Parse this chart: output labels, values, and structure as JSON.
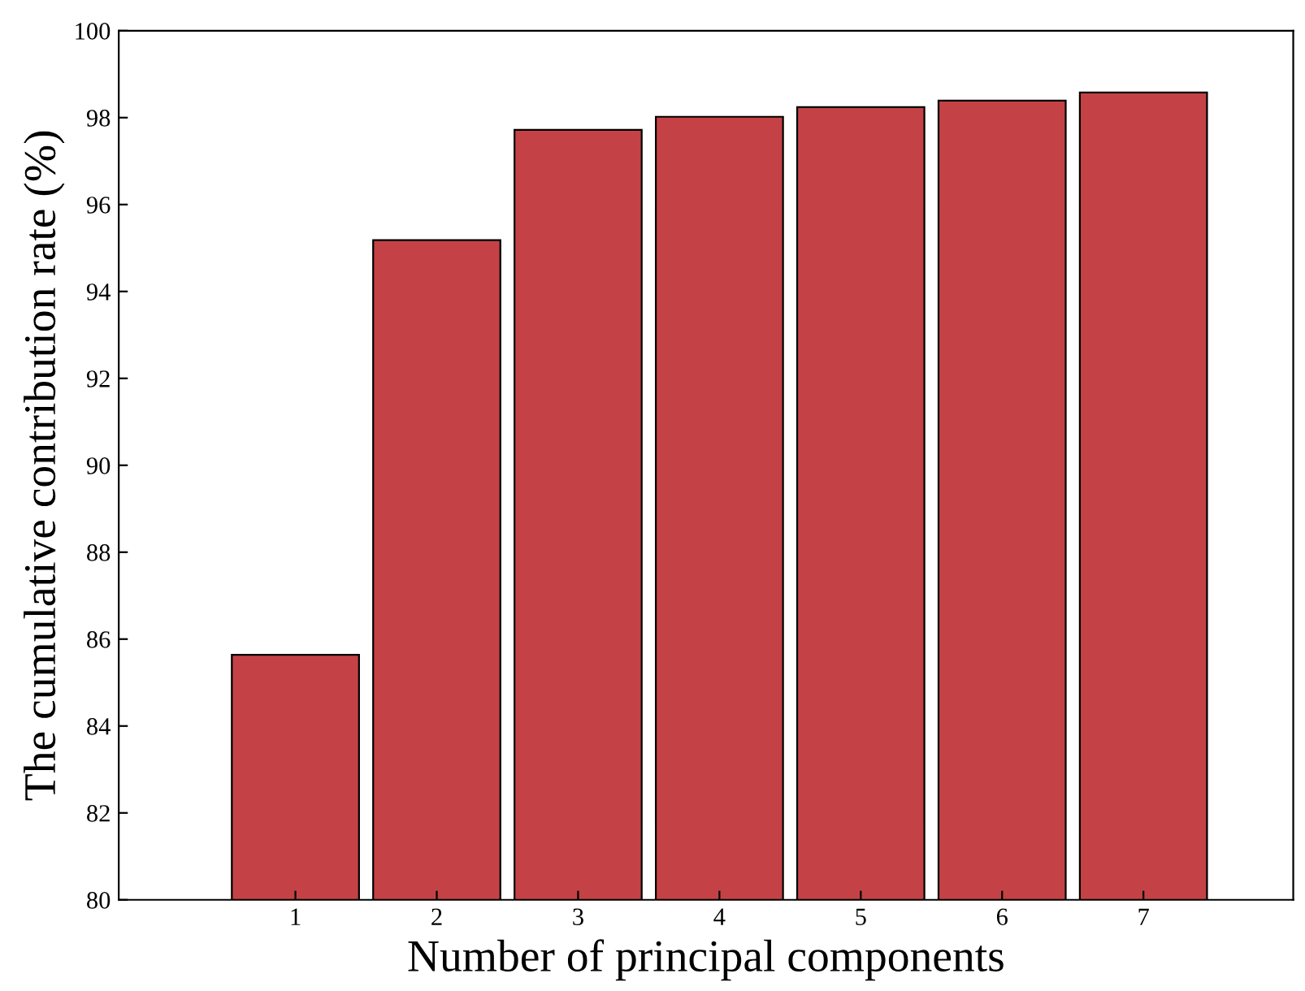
{
  "chart_data": {
    "type": "bar",
    "xlabel": "Number of principal components",
    "ylabel": "The cumulative contribution rate (%)",
    "categories": [
      "1",
      "2",
      "3",
      "4",
      "5",
      "6",
      "7"
    ],
    "values": [
      85.64,
      95.18,
      97.72,
      98.02,
      98.24,
      98.39,
      98.58
    ],
    "color": "#c44245",
    "ylim": [
      80,
      100
    ],
    "yticks": [
      80,
      82,
      84,
      86,
      88,
      90,
      92,
      94,
      96,
      98,
      100
    ],
    "grid": false,
    "legend": false
  }
}
